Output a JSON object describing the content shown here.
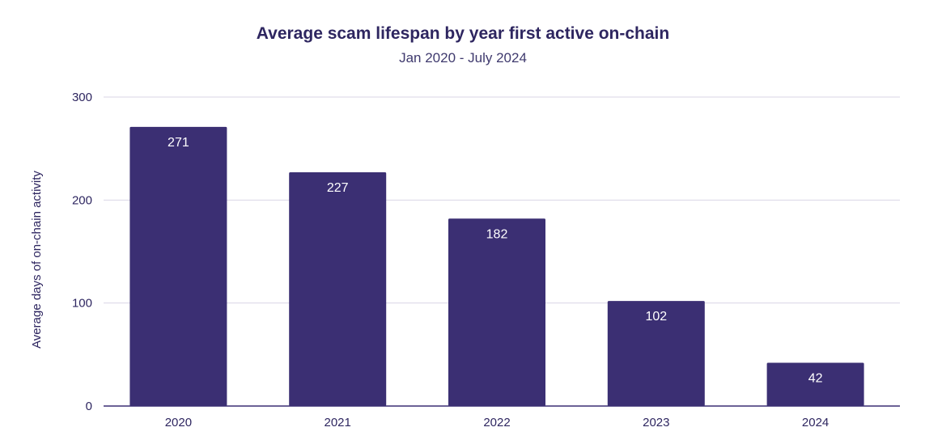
{
  "chart_data": {
    "type": "bar",
    "title": "Average scam lifespan by year first active on-chain",
    "subtitle": "Jan 2020 - July 2024",
    "xlabel": "",
    "ylabel": "Average days of on-chain activity",
    "categories": [
      "2020",
      "2021",
      "2022",
      "2023",
      "2024"
    ],
    "values": [
      271,
      227,
      182,
      102,
      42
    ],
    "data_labels": [
      "271",
      "227",
      "182",
      "102",
      "42"
    ],
    "ylim": [
      0,
      300
    ],
    "yticks": [
      0,
      100,
      200,
      300
    ],
    "ytick_labels": [
      "0",
      "100",
      "200",
      "300"
    ],
    "grid": true,
    "legend": "none"
  },
  "colors": {
    "bar": "#3b2f73",
    "grid": "#d9d5e6",
    "axis": "#3b2f73",
    "text": "#2e2660"
  }
}
